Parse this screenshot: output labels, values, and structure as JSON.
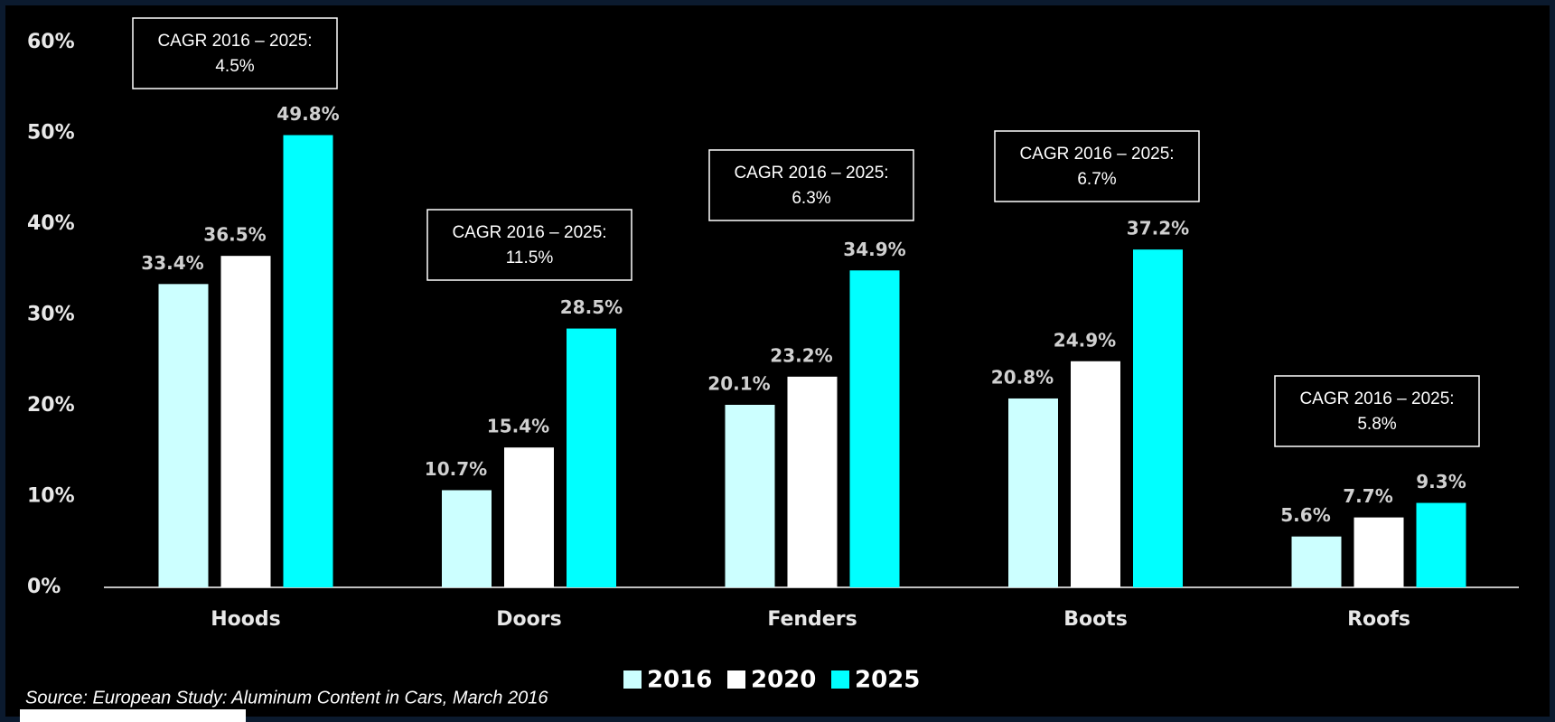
{
  "chart_data": {
    "type": "bar",
    "categories": [
      "Hoods",
      "Doors",
      "Fenders",
      "Boots",
      "Roofs"
    ],
    "series": [
      {
        "name": "2016",
        "color": "#ccffff",
        "values": [
          33.4,
          10.7,
          20.1,
          20.8,
          5.6
        ],
        "value_labels": [
          "33.4%",
          "10.7%",
          "20.1%",
          "20.8%",
          "5.6%"
        ]
      },
      {
        "name": "2020",
        "color": "#ffffff",
        "values": [
          36.5,
          15.4,
          23.2,
          24.9,
          7.7
        ],
        "value_labels": [
          "36.5%",
          "15.4%",
          "23.2%",
          "24.9%",
          "7.7%"
        ]
      },
      {
        "name": "2025",
        "color": "#00ffff",
        "values": [
          49.8,
          28.5,
          34.9,
          37.2,
          9.3
        ],
        "value_labels": [
          "49.8%",
          "28.5%",
          "34.9%",
          "37.2%",
          "9.3%"
        ]
      }
    ],
    "ylim": [
      0,
      60
    ],
    "yticks": [
      {
        "value": 0,
        "label": "0%"
      },
      {
        "value": 10,
        "label": "10%"
      },
      {
        "value": 20,
        "label": "20%"
      },
      {
        "value": 30,
        "label": "30%"
      },
      {
        "value": 40,
        "label": "40%"
      },
      {
        "value": 50,
        "label": "50%"
      },
      {
        "value": 60,
        "label": "60%"
      }
    ],
    "annotations": [
      {
        "title": "CAGR 2016 – 2025:",
        "value": "4.5%"
      },
      {
        "title": "CAGR 2016 – 2025:",
        "value": "11.5%"
      },
      {
        "title": "CAGR 2016 – 2025:",
        "value": "6.3%"
      },
      {
        "title": "CAGR 2016 – 2025:",
        "value": "6.7%"
      },
      {
        "title": "CAGR 2016 – 2025:",
        "value": "5.8%"
      }
    ],
    "legend": "bottom",
    "source": "Source: European Study: Aluminum Content in Cars, March 2016"
  }
}
